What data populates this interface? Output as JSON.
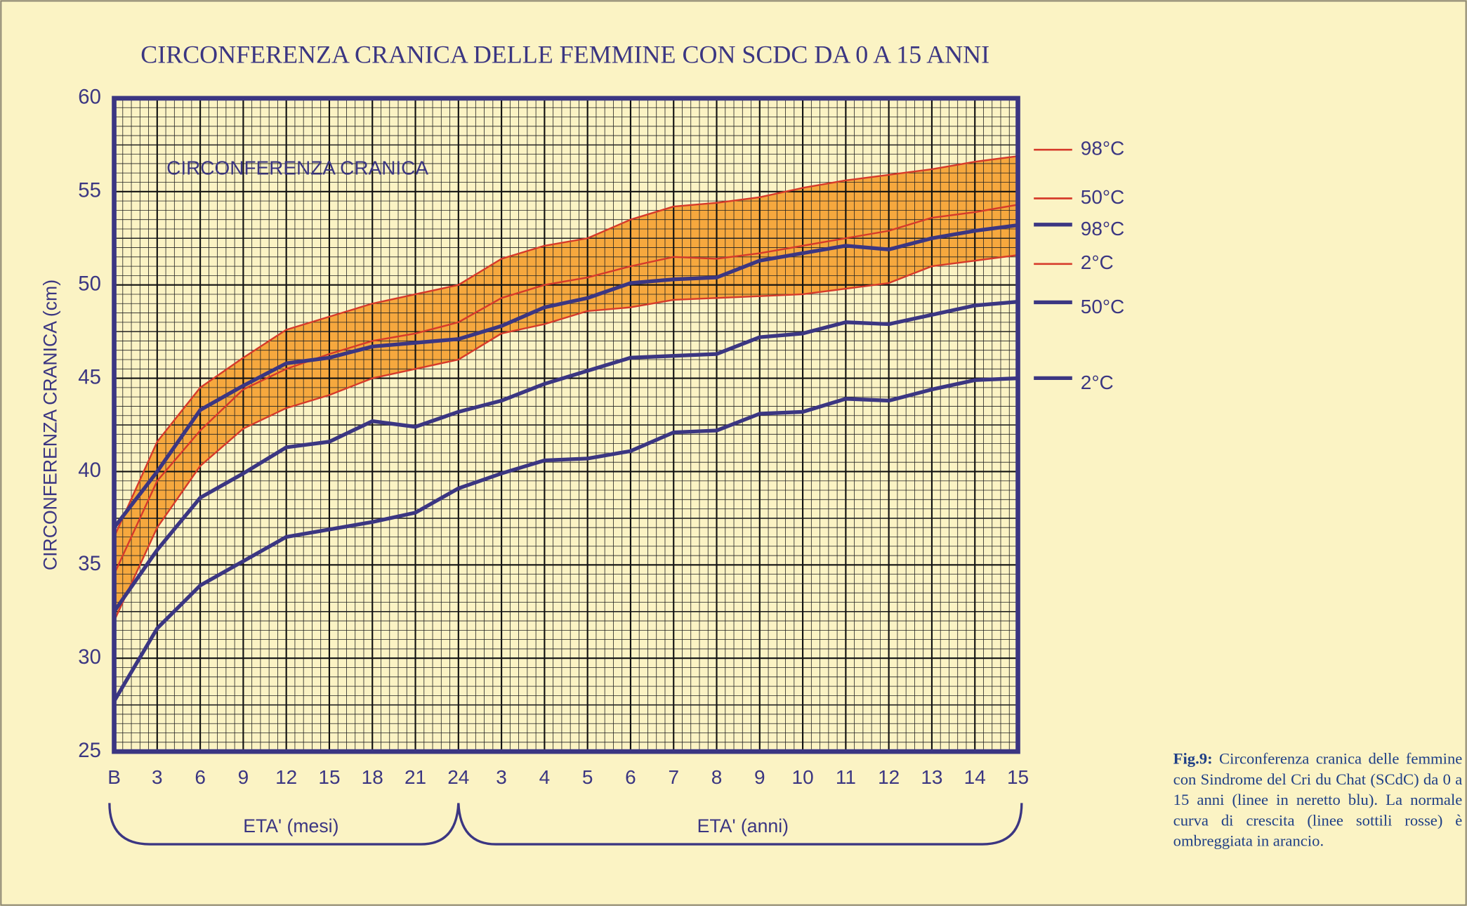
{
  "chart_data": {
    "type": "line",
    "title": "CIRCONFERENZA CRANICA DELLE FEMMINE CON SCDC DA 0 A 15 ANNI",
    "inner_label": "CIRCONFERENZA CRANICA",
    "y_label": "CIRCONFERENZA CRANICA (cm)",
    "x_group_labels": [
      "ETA' (mesi)",
      "ETA' (anni)"
    ],
    "caption_lead": "Fig.9:",
    "caption": "Circonferenza cranica delle femmine con Sindrome del Cri du Chat (SCdC) da 0 a 15 anni (linee in neretto blu). La normale curva di crescita (linee sottili rosse) è ombreggiata in arancio.",
    "categories": [
      "B",
      "3",
      "6",
      "9",
      "12",
      "15",
      "18",
      "21",
      "24",
      "3",
      "4",
      "5",
      "6",
      "7",
      "8",
      "9",
      "10",
      "11",
      "12",
      "13",
      "14",
      "15"
    ],
    "ylim": [
      25,
      60
    ],
    "yticks": [
      25,
      30,
      35,
      40,
      45,
      50,
      55,
      60
    ],
    "grid": true,
    "band_color": "#f5a030",
    "series": [
      {
        "name": "98°C",
        "color": "#d63a2a",
        "values": [
          36.5,
          41.6,
          44.5,
          46.1,
          47.6,
          48.3,
          49.0,
          49.5,
          50.0,
          51.4,
          52.1,
          52.5,
          53.5,
          54.2,
          54.4,
          54.7,
          55.2,
          55.6,
          55.9,
          56.2,
          56.6,
          56.9
        ]
      },
      {
        "name": "50°C",
        "color": "#d63a2a",
        "values": [
          34.5,
          39.5,
          42.2,
          44.4,
          45.5,
          46.3,
          47.0,
          47.4,
          48.0,
          49.3,
          50.0,
          50.4,
          51.0,
          51.5,
          51.4,
          51.7,
          52.1,
          52.5,
          52.9,
          53.6,
          53.9,
          54.3
        ]
      },
      {
        "name": "2°C",
        "color": "#d63a2a",
        "values": [
          32.0,
          37.0,
          40.3,
          42.3,
          43.4,
          44.1,
          45.0,
          45.5,
          46.0,
          47.4,
          47.9,
          48.6,
          48.8,
          49.2,
          49.3,
          49.4,
          49.5,
          49.8,
          50.1,
          51.0,
          51.3,
          51.6
        ]
      },
      {
        "name": "98°C",
        "color": "#3b3682",
        "values": [
          37.0,
          40.0,
          43.3,
          44.6,
          45.8,
          46.1,
          46.7,
          46.9,
          47.1,
          47.8,
          48.8,
          49.3,
          50.1,
          50.3,
          50.4,
          51.3,
          51.7,
          52.1,
          51.9,
          52.5,
          52.9,
          53.2
        ]
      },
      {
        "name": "50°C",
        "color": "#3b3682",
        "values": [
          32.5,
          35.8,
          38.6,
          39.9,
          41.3,
          41.6,
          42.7,
          42.4,
          43.2,
          43.8,
          44.7,
          45.4,
          46.1,
          46.2,
          46.3,
          47.2,
          47.4,
          48.0,
          47.9,
          48.4,
          48.9,
          49.1
        ]
      },
      {
        "name": "2°C",
        "color": "#3b3682",
        "values": [
          27.7,
          31.6,
          33.9,
          35.2,
          36.5,
          36.9,
          37.3,
          37.8,
          39.1,
          39.9,
          40.6,
          40.7,
          41.1,
          42.1,
          42.2,
          43.1,
          43.2,
          43.9,
          43.8,
          44.4,
          44.9,
          45.0
        ]
      }
    ]
  }
}
